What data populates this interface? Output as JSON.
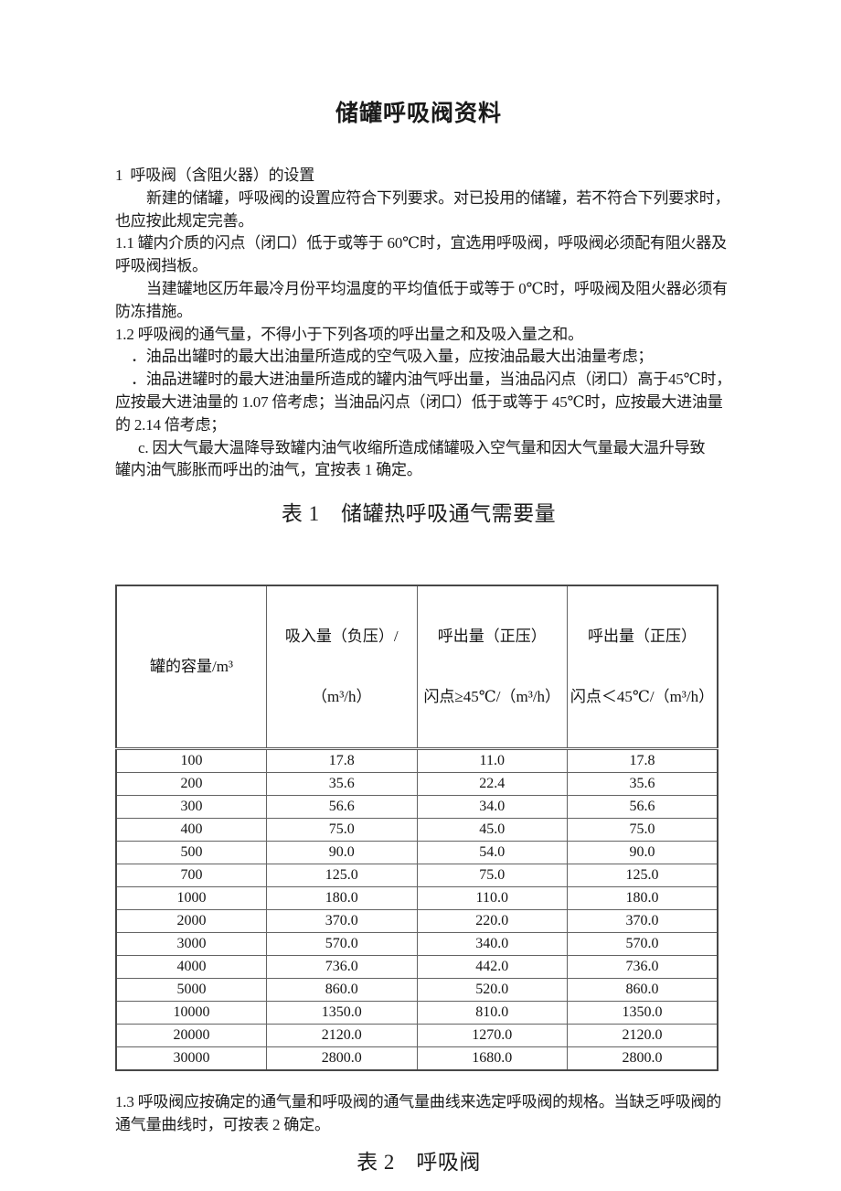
{
  "colors": {
    "background": "#ffffff",
    "text": "#1a1a1a",
    "table_border_outer": "#474747",
    "table_border_inner": "#636363"
  },
  "document": {
    "title": "储罐呼吸阀资料",
    "lines": [
      "1  呼吸阀（含阻火器）的设置",
      "新建的储罐，呼吸阀的设置应符合下列要求。对已投用的储罐，若不符合下列要求时，",
      "也应按此规定完善。",
      "1.1 罐内介质的闪点（闭口）低于或等于 60℃时，宜选用呼吸阀，呼吸阀必须配有阻火器及",
      "呼吸阀挡板。",
      "当建罐地区历年最冷月份平均温度的平均值低于或等于 0℃时，呼吸阀及阻火器必须有",
      "防冻措施。",
      "1.2 呼吸阀的通气量，不得小于下列各项的呼出量之和及吸入量之和。",
      "．油品出罐时的最大出油量所造成的空气吸入量，应按油品最大出油量考虑；",
      "．油品进罐时的最大进油量所造成的罐内油气呼出量，当油品闪点（闭口）高于45℃时，",
      "应按最大进油量的 1.07 倍考虑；当油品闪点（闭口）低于或等于 45℃时，应按最大进油量",
      "的 2.14 倍考虑；",
      "c. 因大气最大温降导致罐内油气收缩所造成储罐吸入空气量和因大气量最大温升导致",
      "罐内油气膨胀而呼出的油气，宜按表 1 确定。"
    ],
    "closing_lines": [
      "1.3 呼吸阀应按确定的通气量和呼吸阀的通气量曲线来选定呼吸阀的规格。当缺乏呼吸阀的",
      "通气量曲线时，可按表 2 确定。"
    ]
  },
  "table1": {
    "caption": "表 1　储罐热呼吸通气需要量",
    "columns": [
      {
        "line1": "罐的容量/m³",
        "line2": ""
      },
      {
        "line1": "吸入量（负压）/",
        "line2": "（m³/h）"
      },
      {
        "line1": "呼出量（正压）",
        "line2": "闪点≥45℃/（m³/h）"
      },
      {
        "line1": "呼出量（正压）",
        "line2": "闪点＜45℃/（m³/h）"
      }
    ],
    "rows": [
      [
        "100",
        "17.8",
        "11.0",
        "17.8"
      ],
      [
        "200",
        "35.6",
        "22.4",
        "35.6"
      ],
      [
        "300",
        "56.6",
        "34.0",
        "56.6"
      ],
      [
        "400",
        "75.0",
        "45.0",
        "75.0"
      ],
      [
        "500",
        "90.0",
        "54.0",
        "90.0"
      ],
      [
        "700",
        "125.0",
        "75.0",
        "125.0"
      ],
      [
        "1000",
        "180.0",
        "110.0",
        "180.0"
      ],
      [
        "2000",
        "370.0",
        "220.0",
        "370.0"
      ],
      [
        "3000",
        "570.0",
        "340.0",
        "570.0"
      ],
      [
        "4000",
        "736.0",
        "442.0",
        "736.0"
      ],
      [
        "5000",
        "860.0",
        "520.0",
        "860.0"
      ],
      [
        "10000",
        "1350.0",
        "810.0",
        "1350.0"
      ],
      [
        "20000",
        "2120.0",
        "1270.0",
        "2120.0"
      ],
      [
        "30000",
        "2800.0",
        "1680.0",
        "2800.0"
      ]
    ]
  },
  "table2": {
    "caption": "表 2　呼吸阀"
  }
}
